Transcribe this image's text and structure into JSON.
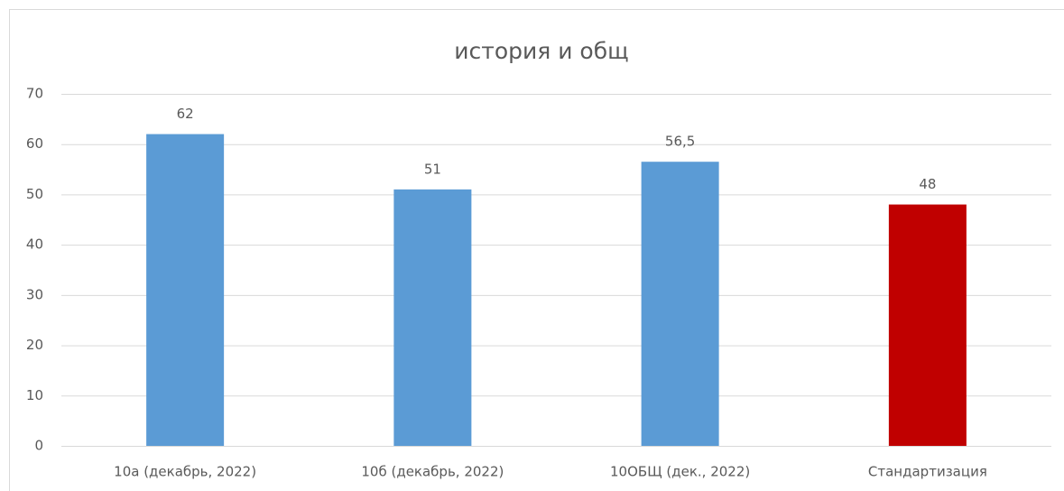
{
  "chart_data": {
    "type": "bar",
    "title": "история и общ",
    "categories": [
      "10а (декабрь, 2022)",
      "10б (декабрь, 2022)",
      "10ОБЩ (дек., 2022)",
      "Стандартизация"
    ],
    "values": [
      62,
      51,
      56.5,
      48
    ],
    "value_labels": [
      "62",
      "51",
      "56,5",
      "48"
    ],
    "colors": [
      "#5b9bd5",
      "#5b9bd5",
      "#5b9bd5",
      "#c00000"
    ],
    "ylim": [
      0,
      70
    ],
    "yticks": [
      0,
      10,
      20,
      30,
      40,
      50,
      60,
      70
    ],
    "grid": true
  }
}
